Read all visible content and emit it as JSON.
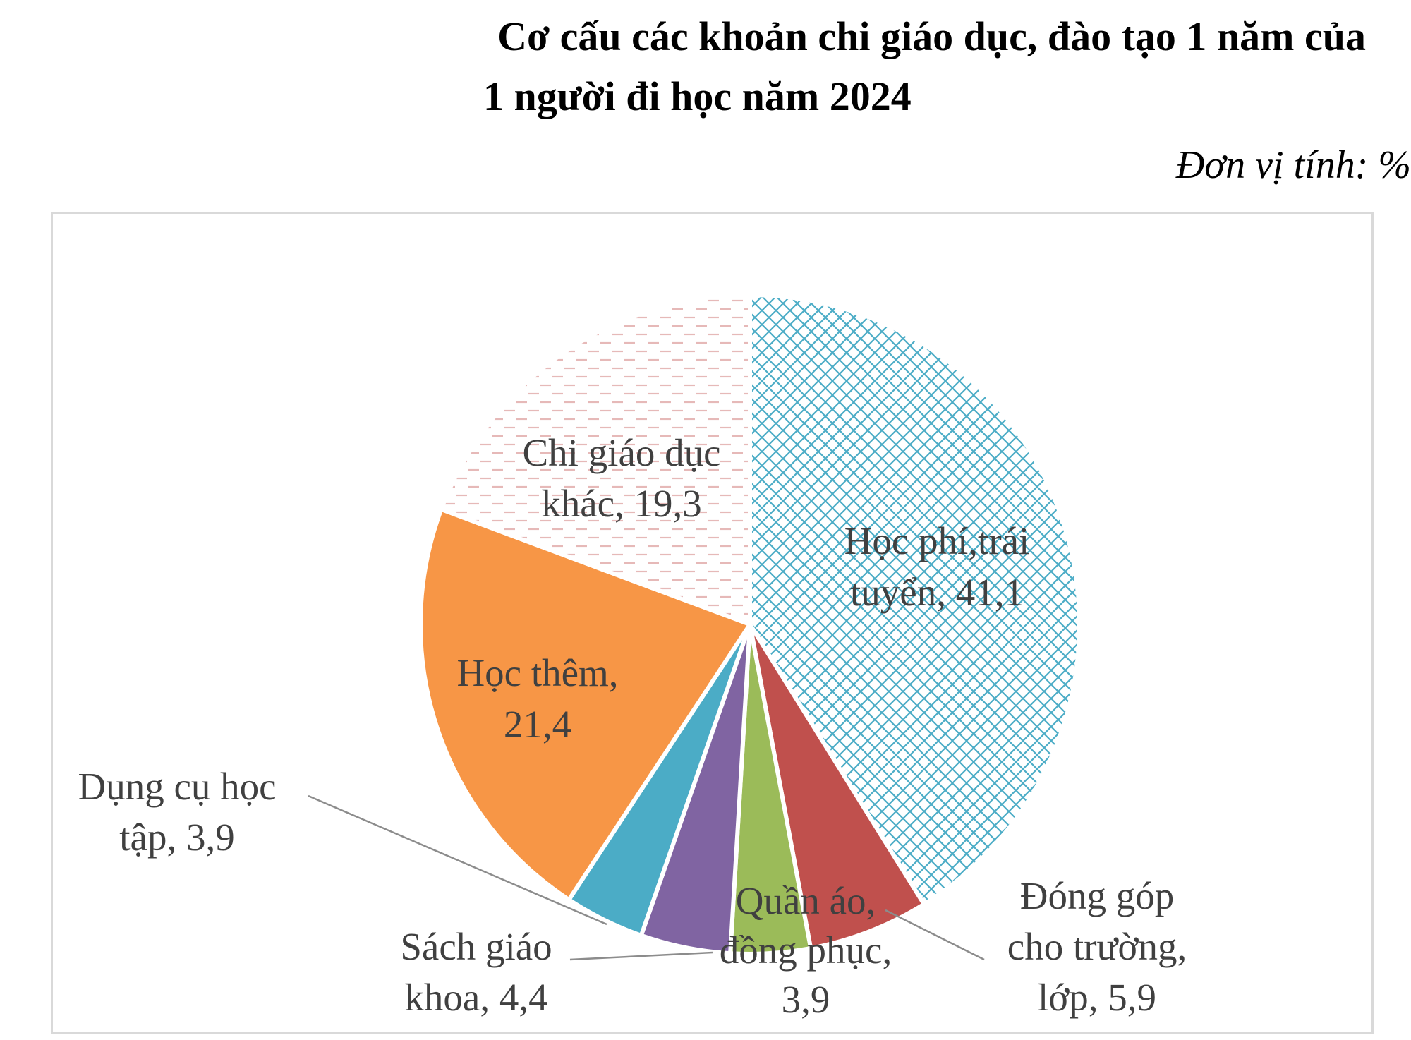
{
  "title": {
    "line1": "Cơ cấu các khoản chi giáo dục, đào tạo 1 năm của",
    "line2": "1 người đi học năm 2024"
  },
  "unit_label": "Đơn vị tính: %",
  "chart_data": {
    "type": "pie",
    "title": "Cơ cấu các khoản chi giáo dục, đào tạo 1 năm của 1 người đi học năm 2024",
    "unit": "%",
    "slices": [
      {
        "category": "Học phí,trái tuyển",
        "value": 41.1,
        "label_lines": [
          "Học phí,trái",
          "tuyển, 41,1"
        ],
        "color": "#4bacc6",
        "pattern": "diamond-hatch"
      },
      {
        "category": "Đóng góp cho trường, lớp",
        "value": 5.9,
        "label_lines": [
          "Đóng góp",
          "cho trường,",
          "lớp, 5,9"
        ],
        "color": "#c0504d",
        "pattern": "solid"
      },
      {
        "category": "Quần áo, đồng phục",
        "value": 3.9,
        "label_lines": [
          "Quần áo,",
          "đồng phục,",
          "3,9"
        ],
        "color": "#9bbb59",
        "pattern": "solid"
      },
      {
        "category": "Sách giáo khoa",
        "value": 4.4,
        "label_lines": [
          "Sách giáo",
          "khoa, 4,4"
        ],
        "color": "#8064a2",
        "pattern": "solid"
      },
      {
        "category": "Dụng cụ học tập",
        "value": 3.9,
        "label_lines": [
          "Dụng cụ học",
          "tập, 3,9"
        ],
        "color": "#4bacc6",
        "pattern": "solid"
      },
      {
        "category": "Học thêm",
        "value": 21.4,
        "label_lines": [
          "Học thêm,",
          "21,4"
        ],
        "color": "#f79646",
        "pattern": "solid"
      },
      {
        "category": "Chi giáo dục khác",
        "value": 19.3,
        "label_lines": [
          "Chi giáo dục",
          "khác, 19,3"
        ],
        "color": "#e6b9b8",
        "pattern": "dashed-lines"
      }
    ],
    "start_angle": "12 o'clock",
    "direction": "clockwise",
    "legend": "none"
  }
}
